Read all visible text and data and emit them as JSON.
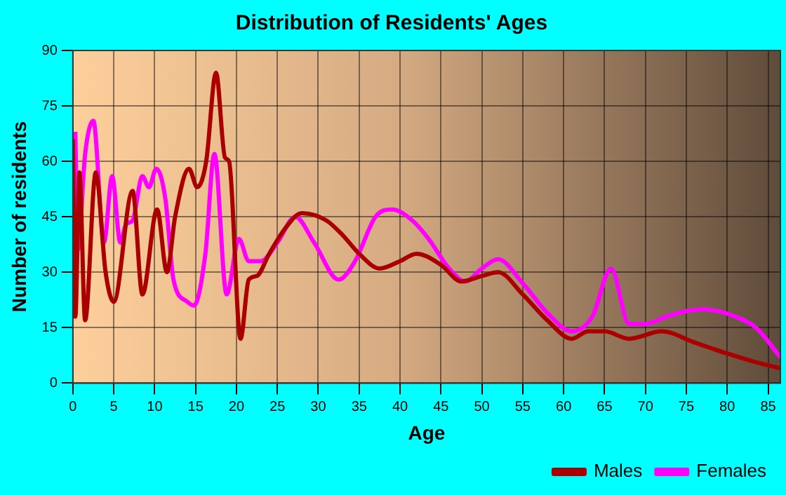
{
  "chart_data": {
    "type": "line",
    "title": "Distribution of Residents' Ages",
    "xlabel": "Age",
    "ylabel": "Number of residents",
    "xlim": [
      0,
      86.5
    ],
    "xticks": [
      0,
      5,
      10,
      15,
      20,
      25,
      30,
      35,
      40,
      45,
      50,
      55,
      60,
      65,
      70,
      75,
      80,
      85
    ],
    "ylim": [
      0,
      90
    ],
    "yticks": [
      0,
      15,
      30,
      45,
      60,
      75,
      90
    ],
    "grid": true,
    "legend": "bottom right",
    "series": [
      {
        "name": "Males",
        "color": "#aa0000",
        "x": [
          0,
          0.3,
          0.8,
          1.5,
          2.8,
          4,
          5,
          7.3,
          8.5,
          10.3,
          11.5,
          12.5,
          14.2,
          15.2,
          16.3,
          17.5,
          18.6,
          19.1,
          20.5,
          21.5,
          22.5,
          24,
          26,
          28,
          31,
          33,
          35,
          37.5,
          40,
          42,
          45,
          47.5,
          50,
          52,
          55,
          58,
          61,
          63,
          65,
          68,
          72,
          76,
          80,
          83,
          86.5
        ],
        "values": [
          66,
          18,
          57,
          17,
          57,
          30,
          22,
          52,
          24,
          47,
          30,
          45,
          58,
          53,
          60,
          84,
          61,
          60,
          12,
          28,
          29,
          35,
          42,
          46,
          44,
          40,
          35,
          31,
          33,
          35,
          32,
          27.5,
          29,
          30,
          24,
          17,
          12,
          14,
          14,
          12,
          14,
          11,
          8,
          6,
          4
        ]
      },
      {
        "name": "Females",
        "color": "#ff00ff",
        "x": [
          0.3,
          0.6,
          1.5,
          2.5,
          3.8,
          4.8,
          5.8,
          6.5,
          7.3,
          8.5,
          9.3,
          10.2,
          11.3,
          12.3,
          14,
          14.8,
          16.2,
          17.3,
          18.8,
          20.3,
          21.5,
          23,
          25,
          27.2,
          29.5,
          32.5,
          34.5,
          37,
          39,
          41.5,
          43.5,
          46,
          48,
          50,
          52,
          55,
          58,
          61,
          63.5,
          65.8,
          68,
          70,
          72.5,
          77,
          81,
          83.5,
          86.5
        ],
        "values": [
          68,
          36,
          62,
          71,
          38,
          56,
          38,
          43,
          44,
          56,
          53,
          58,
          50,
          28,
          22,
          21,
          35,
          62,
          24,
          39,
          33,
          33,
          38,
          45,
          38,
          28,
          33,
          45,
          47,
          44,
          39,
          31,
          27.5,
          31,
          33.5,
          27,
          19,
          14,
          18,
          31,
          16,
          16,
          18,
          20,
          18,
          15,
          7
        ]
      }
    ]
  }
}
